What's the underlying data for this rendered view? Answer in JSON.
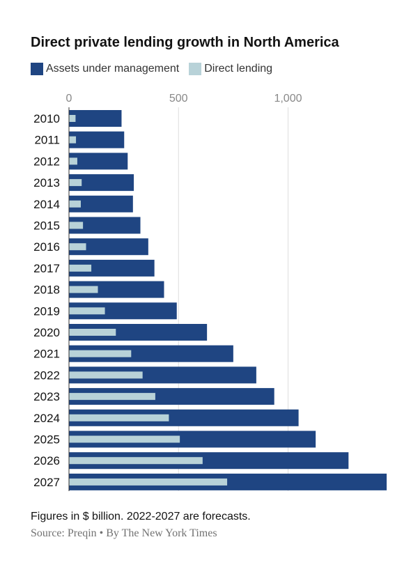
{
  "chart_data": {
    "type": "bar",
    "orientation": "horizontal",
    "title": "Direct private lending growth in North America",
    "categories": [
      "2010",
      "2011",
      "2012",
      "2013",
      "2014",
      "2015",
      "2016",
      "2017",
      "2018",
      "2019",
      "2020",
      "2021",
      "2022",
      "2023",
      "2024",
      "2025",
      "2026",
      "2027"
    ],
    "series": [
      {
        "name": "Assets under management",
        "color": "#1f4582",
        "values": [
          240,
          252,
          268,
          296,
          292,
          326,
          362,
          390,
          434,
          492,
          630,
          750,
          855,
          937,
          1048,
          1126,
          1276,
          1450
        ]
      },
      {
        "name": "Direct lending",
        "color": "#b8d2d8",
        "values": [
          30,
          32,
          38,
          58,
          54,
          64,
          78,
          102,
          132,
          164,
          214,
          284,
          336,
          394,
          456,
          506,
          610,
          722
        ]
      }
    ],
    "xlim": [
      0,
      1450
    ],
    "xticks": [
      0,
      500,
      1000
    ],
    "xtick_labels": [
      "0",
      "500",
      "1,000"
    ],
    "grid": true,
    "legend_position": "top-left",
    "note": "Figures in $ billion. 2022-2027 are forecasts.",
    "source": "Source: Preqin • By The New York Times"
  }
}
